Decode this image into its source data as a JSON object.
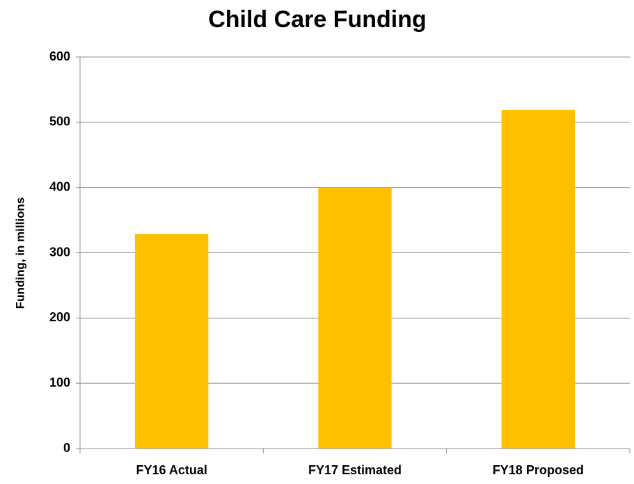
{
  "chart_data": {
    "type": "bar",
    "title": "Child Care Funding",
    "y_label": "Funding, in millions",
    "categories": [
      "FY16 Actual",
      "FY17 Estimated",
      "FY18 Proposed"
    ],
    "values": [
      329,
      400,
      519
    ],
    "color": "#ffc000",
    "ylim": [
      0,
      600
    ],
    "yticks": [
      0,
      100,
      200,
      300,
      400,
      500,
      600
    ],
    "grid": true
  }
}
